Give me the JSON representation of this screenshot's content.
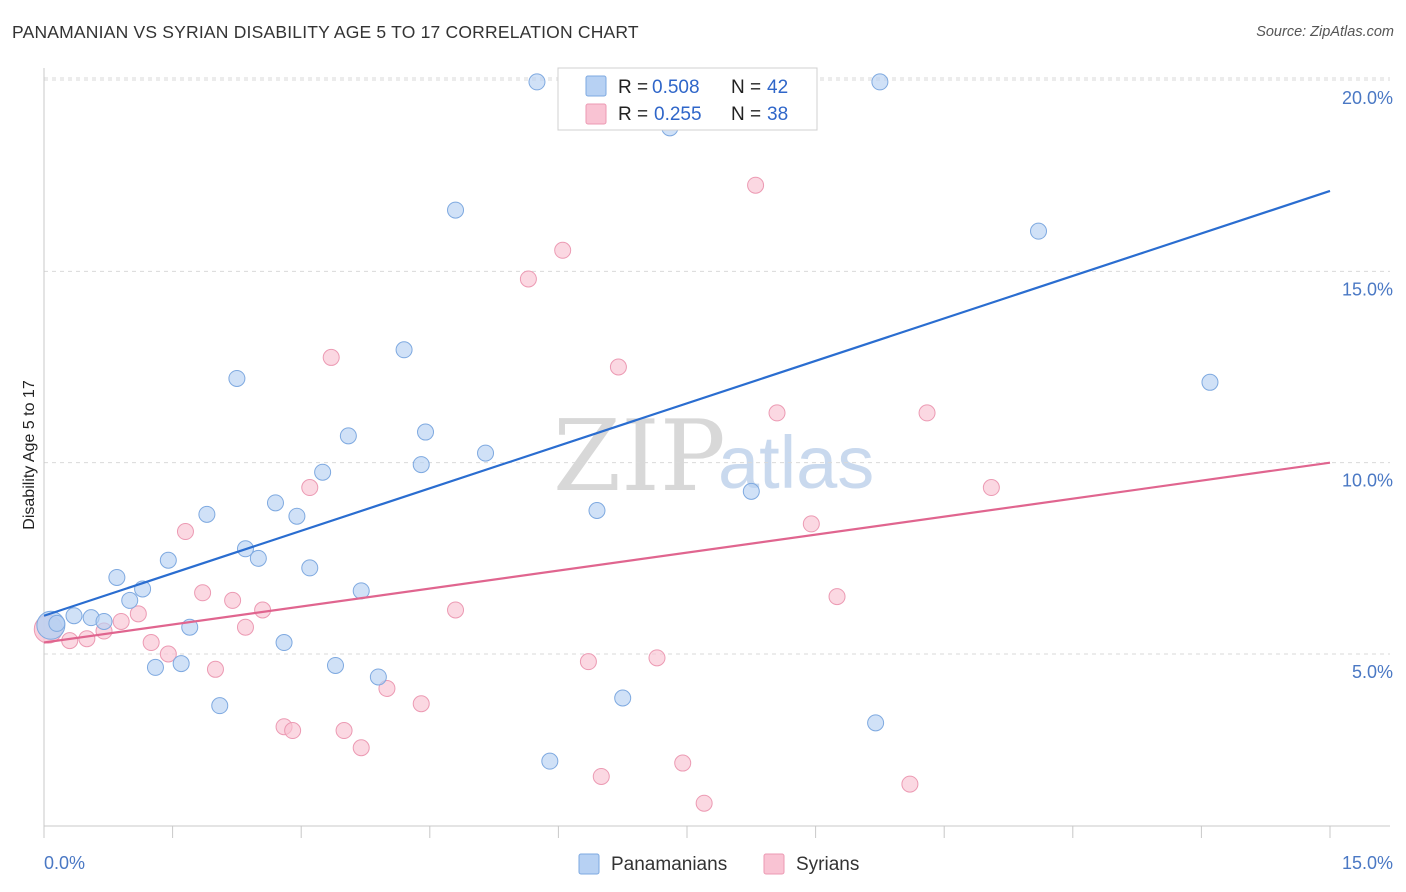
{
  "header": {
    "title": "PANAMANIAN VS SYRIAN DISABILITY AGE 5 TO 17 CORRELATION CHART",
    "source": "Source: ZipAtlas.com"
  },
  "watermark": {
    "zip": "ZIP",
    "atlas": "atlas"
  },
  "colors": {
    "blue_fill": "#b7d1f3",
    "blue_stroke": "#7ea9e0",
    "blue_line": "#2a6dd0",
    "pink_fill": "#f9c3d3",
    "pink_stroke": "#ec9ab3",
    "pink_line": "#e0658f",
    "grid": "#d9d9d9",
    "tick_text": "#4a78c4"
  },
  "legend": {
    "rows": [
      {
        "r_label": "R = ",
        "r_value": "0.508",
        "n_label": "N = ",
        "n_value": "42"
      },
      {
        "r_label": "R = ",
        "r_value": "0.255",
        "n_label": "N = ",
        "n_value": "38"
      }
    ]
  },
  "bottom_legend": {
    "items": [
      "Panamanians",
      "Syrians"
    ]
  },
  "chart_data": {
    "type": "scatter",
    "title": "PANAMANIAN VS SYRIAN DISABILITY AGE 5 TO 17 CORRELATION CHART",
    "xlabel": "",
    "ylabel": "Disability Age 5 to 17",
    "xlim": [
      0,
      15
    ],
    "ylim": [
      0,
      20.5
    ],
    "x_tick_labels": [
      "0.0%",
      "15.0%"
    ],
    "y_ticks": [
      5,
      10,
      15,
      20
    ],
    "y_tick_labels": [
      "5.0%",
      "10.0%",
      "15.0%",
      "20.0%"
    ],
    "grid": true,
    "legend_position": "top-center",
    "series": [
      {
        "name": "Panamanians",
        "r": 0.508,
        "n": 42,
        "trend": {
          "x": [
            0,
            15
          ],
          "y": [
            6.0,
            17.1
          ]
        },
        "points": [
          [
            0.08,
            5.75
          ],
          [
            0.15,
            5.8
          ],
          [
            0.35,
            6.0
          ],
          [
            0.55,
            5.95
          ],
          [
            0.7,
            5.85
          ],
          [
            0.85,
            7.0
          ],
          [
            1.0,
            6.4
          ],
          [
            1.15,
            6.7
          ],
          [
            1.3,
            4.65
          ],
          [
            1.45,
            7.45
          ],
          [
            1.6,
            4.75
          ],
          [
            1.7,
            5.7
          ],
          [
            1.9,
            8.65
          ],
          [
            2.05,
            3.65
          ],
          [
            2.25,
            12.2
          ],
          [
            2.35,
            7.75
          ],
          [
            2.5,
            7.5
          ],
          [
            2.7,
            8.95
          ],
          [
            2.8,
            5.3
          ],
          [
            2.95,
            8.6
          ],
          [
            3.1,
            7.25
          ],
          [
            3.25,
            9.75
          ],
          [
            3.4,
            4.7
          ],
          [
            3.55,
            10.7
          ],
          [
            3.7,
            6.65
          ],
          [
            3.9,
            4.4
          ],
          [
            4.2,
            12.95
          ],
          [
            4.4,
            9.95
          ],
          [
            4.45,
            10.8
          ],
          [
            4.8,
            16.6
          ],
          [
            5.15,
            10.25
          ],
          [
            5.75,
            19.95
          ],
          [
            5.9,
            2.2
          ],
          [
            6.45,
            8.75
          ],
          [
            6.75,
            3.85
          ],
          [
            7.0,
            19.9
          ],
          [
            7.3,
            18.75
          ],
          [
            8.25,
            9.25
          ],
          [
            9.75,
            19.95
          ],
          [
            9.7,
            3.2
          ],
          [
            11.6,
            16.05
          ],
          [
            13.6,
            12.1
          ]
        ]
      },
      {
        "name": "Syrians",
        "r": 0.255,
        "n": 38,
        "trend": {
          "x": [
            0,
            15
          ],
          "y": [
            5.3,
            10.0
          ]
        },
        "points": [
          [
            0.05,
            5.65
          ],
          [
            0.3,
            5.35
          ],
          [
            0.5,
            5.4
          ],
          [
            0.7,
            5.6
          ],
          [
            0.9,
            5.85
          ],
          [
            1.1,
            6.05
          ],
          [
            1.25,
            5.3
          ],
          [
            1.45,
            5.0
          ],
          [
            1.65,
            8.2
          ],
          [
            1.85,
            6.6
          ],
          [
            2.0,
            4.6
          ],
          [
            2.2,
            6.4
          ],
          [
            2.35,
            5.7
          ],
          [
            2.55,
            6.15
          ],
          [
            2.8,
            3.1
          ],
          [
            2.9,
            3.0
          ],
          [
            3.1,
            9.35
          ],
          [
            3.35,
            12.75
          ],
          [
            3.5,
            3.0
          ],
          [
            3.7,
            2.55
          ],
          [
            4.0,
            4.1
          ],
          [
            4.4,
            3.7
          ],
          [
            4.8,
            6.15
          ],
          [
            5.65,
            14.8
          ],
          [
            6.05,
            15.55
          ],
          [
            6.35,
            4.8
          ],
          [
            6.5,
            1.8
          ],
          [
            6.7,
            12.5
          ],
          [
            7.15,
            4.9
          ],
          [
            7.45,
            2.15
          ],
          [
            7.7,
            1.1
          ],
          [
            8.3,
            17.25
          ],
          [
            8.55,
            11.3
          ],
          [
            8.95,
            8.4
          ],
          [
            9.25,
            6.5
          ],
          [
            10.1,
            1.6
          ],
          [
            10.3,
            11.3
          ],
          [
            11.05,
            9.35
          ]
        ]
      }
    ]
  }
}
